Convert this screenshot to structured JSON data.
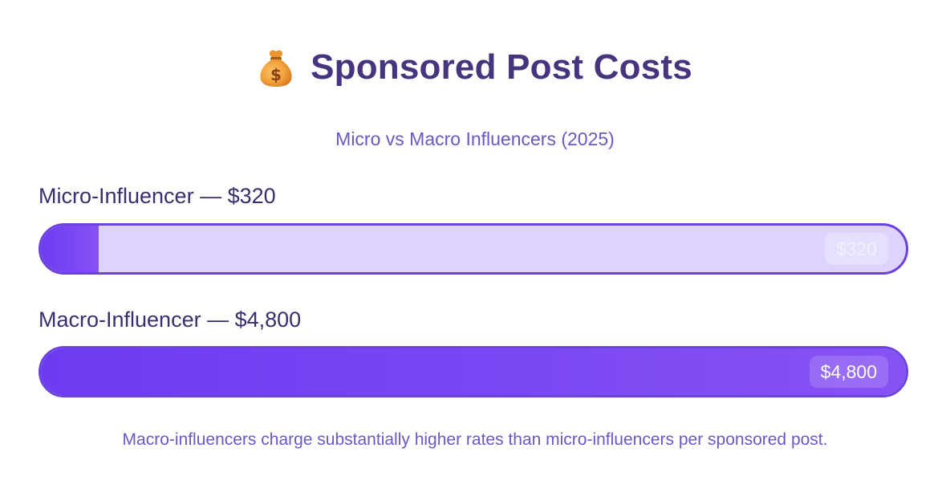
{
  "header": {
    "icon": "money-bag-icon",
    "title": "Sponsored Post Costs",
    "subtitle": "Micro vs Macro Influencers (2025)"
  },
  "chart_data": {
    "type": "bar",
    "orientation": "horizontal",
    "title": "Sponsored Post Costs",
    "subtitle": "Micro vs Macro Influencers (2025)",
    "categories": [
      "Micro-Influencer",
      "Macro-Influencer"
    ],
    "values": [
      320,
      4800
    ],
    "max": 4800,
    "bars": [
      {
        "label": "Micro-Influencer — $320",
        "value": 320,
        "value_label": "$320"
      },
      {
        "label": "Macro-Influencer — $4,800",
        "value": 4800,
        "value_label": "$4,800"
      }
    ],
    "colors": {
      "fill": "#7040f2",
      "track": "#ddd3fd",
      "border": "#6b42de"
    }
  },
  "footnote": "Macro-influencers charge substantially higher rates than micro-influencers per sponsored post."
}
